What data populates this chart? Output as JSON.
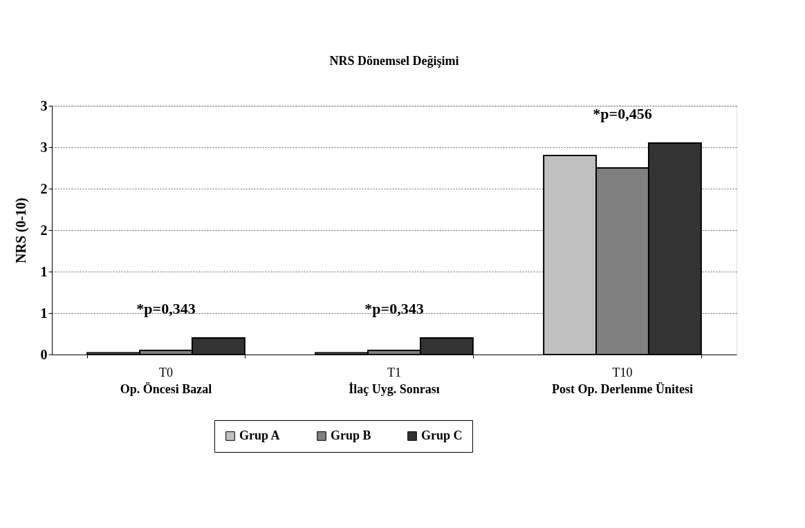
{
  "chart_data": {
    "type": "bar",
    "title": "NRS Dönemsel Değişimi",
    "ylabel": "NRS (0-10)",
    "categories": [
      "T0\nOp. Öncesi Bazal",
      "T1\nİlaç Uyg. Sonrası",
      "T10\nPost Op. Derlenme Ünitesi"
    ],
    "series": [
      {
        "name": "Grup A",
        "color": "#c0c0c0",
        "values": [
          0.02,
          0.02,
          2.4
        ]
      },
      {
        "name": "Grup B",
        "color": "#808080",
        "values": [
          0.05,
          0.05,
          2.25
        ]
      },
      {
        "name": "Grup C",
        "color": "#333333",
        "values": [
          0.2,
          0.2,
          2.55
        ]
      }
    ],
    "ylim": [
      0,
      3
    ],
    "yticks": [
      0,
      {
        "value": 0.5,
        "label": "1"
      },
      1,
      {
        "value": 1.5,
        "label": "2"
      },
      2,
      {
        "value": 2.5,
        "label": "3"
      },
      3
    ],
    "grid": "y",
    "legend": "bottom",
    "annotations": [
      "*p=0,343",
      "*p=0,343",
      "*p=0,456"
    ]
  }
}
